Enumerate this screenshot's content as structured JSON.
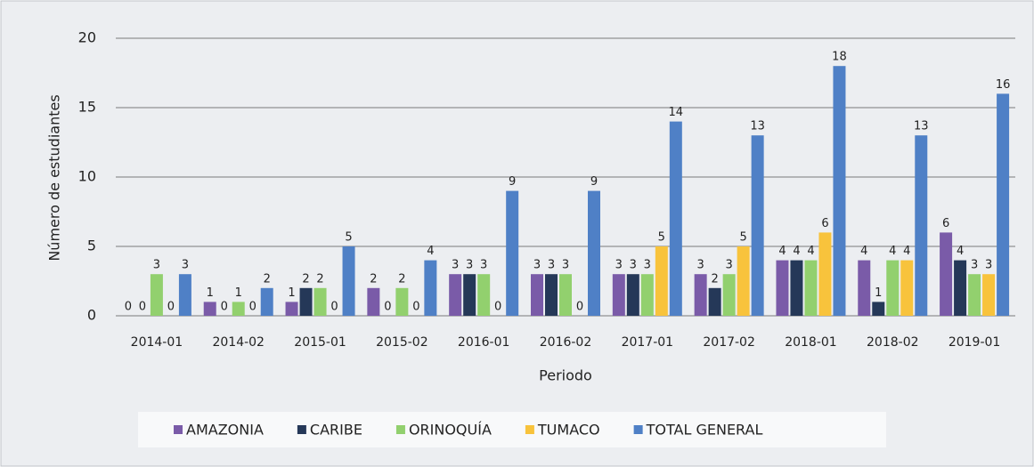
{
  "chart_data": {
    "type": "bar",
    "categories": [
      "2014-01",
      "2014-02",
      "2015-01",
      "2015-02",
      "2016-01",
      "2016-02",
      "2017-01",
      "2017-02",
      "2018-01",
      "2018-02",
      "2019-01"
    ],
    "series": [
      {
        "name": "AMAZONIA",
        "color": "#7a5ba8",
        "values": [
          0,
          1,
          1,
          2,
          3,
          3,
          3,
          3,
          4,
          4,
          6
        ]
      },
      {
        "name": "CARIBE",
        "color": "#253858",
        "values": [
          0,
          0,
          2,
          0,
          3,
          3,
          3,
          2,
          4,
          1,
          4
        ]
      },
      {
        "name": "ORINOQUÍA",
        "color": "#92d06e",
        "values": [
          3,
          1,
          2,
          2,
          3,
          3,
          3,
          3,
          4,
          4,
          3
        ]
      },
      {
        "name": "TUMACO",
        "color": "#f8c33c",
        "values": [
          0,
          0,
          0,
          0,
          0,
          0,
          5,
          5,
          6,
          4,
          3
        ]
      },
      {
        "name": "TOTAL GENERAL",
        "color": "#4f80c6",
        "values": [
          3,
          2,
          5,
          4,
          9,
          9,
          14,
          13,
          18,
          13,
          16
        ]
      }
    ],
    "xlabel": "Periodo",
    "ylabel": "Número de estudiantes",
    "ylim": [
      0,
      20
    ],
    "yticks": [
      0,
      5,
      10,
      15,
      20
    ],
    "grid": true,
    "legend": "bottom"
  }
}
